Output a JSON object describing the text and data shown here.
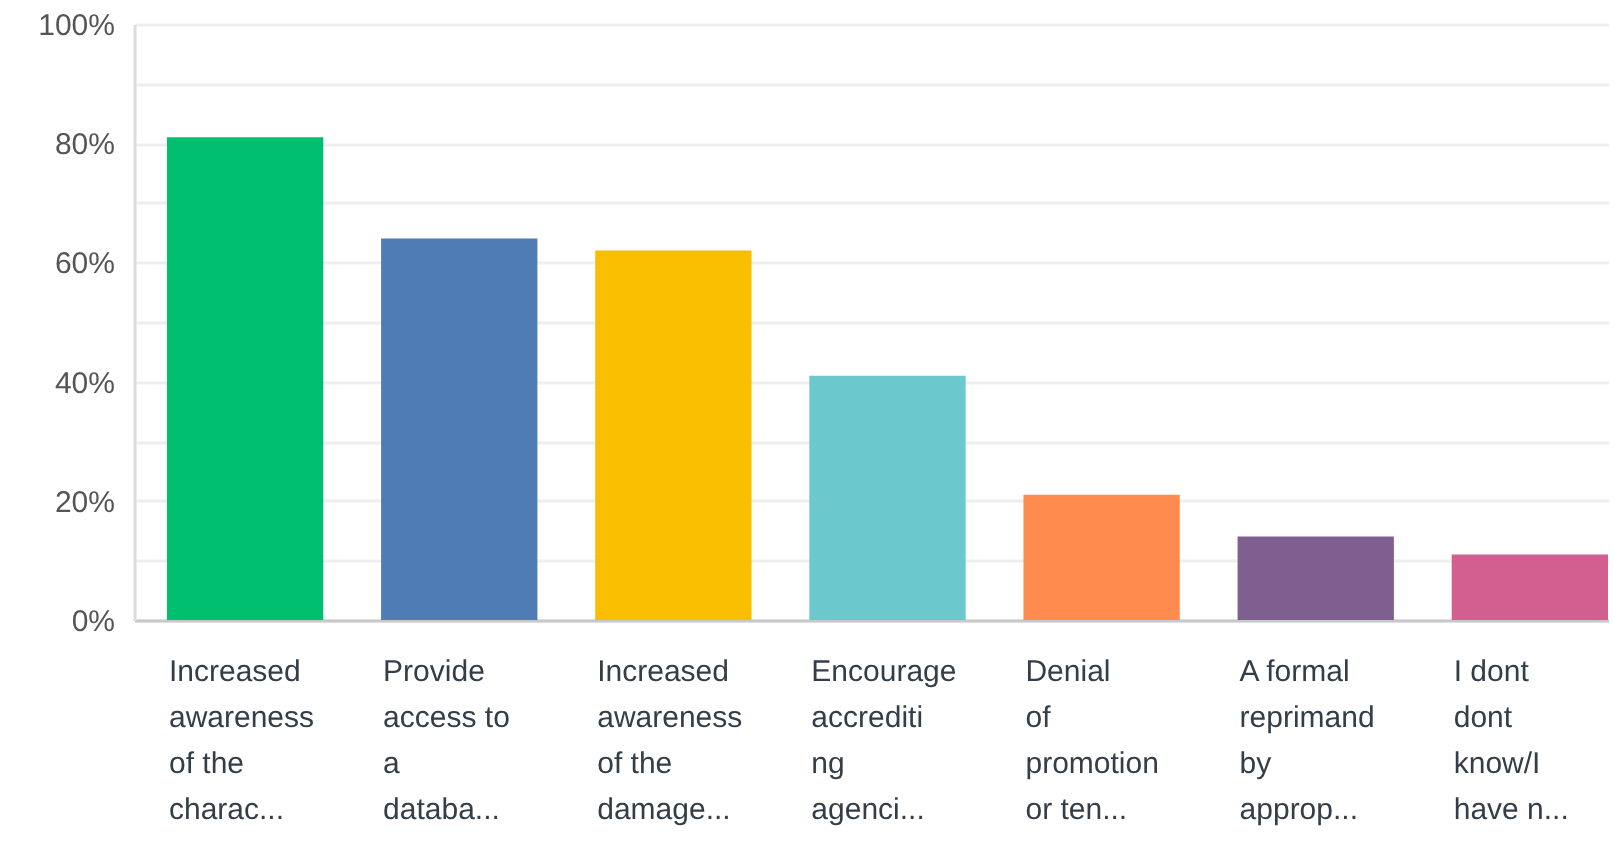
{
  "chart_data": {
    "type": "bar",
    "categories": [
      "Increased\nawareness\nof the\ncharac...",
      "Provide\naccess to\na\ndataba...",
      "Increased\nawareness\nof the\ndamage...",
      "Encourage\naccrediti\nng\nagenci...",
      "Denial\nof\npromotion\nor ten...",
      "A formal\nreprimand\nby\napprop...",
      "I dont\ndont\nknow/I\nhave n..."
    ],
    "values": [
      81,
      64,
      62,
      41,
      21,
      14,
      11
    ],
    "colors": [
      "#00bf6f",
      "#507cb6",
      "#f9be00",
      "#6bc8cd",
      "#ff8b4f",
      "#7f5f90",
      "#d25f90"
    ],
    "ylim": [
      0,
      100
    ],
    "yticks": [
      {
        "value": 0,
        "label": "0%"
      },
      {
        "value": 10,
        "label": null
      },
      {
        "value": 20,
        "label": "20%"
      },
      {
        "value": 30,
        "label": null
      },
      {
        "value": 40,
        "label": "40%"
      },
      {
        "value": 50,
        "label": null
      },
      {
        "value": 60,
        "label": "60%"
      },
      {
        "value": 70,
        "label": null
      },
      {
        "value": 80,
        "label": "80%"
      },
      {
        "value": 90,
        "label": null
      },
      {
        "value": 100,
        "label": "100%"
      }
    ],
    "grid": true
  }
}
